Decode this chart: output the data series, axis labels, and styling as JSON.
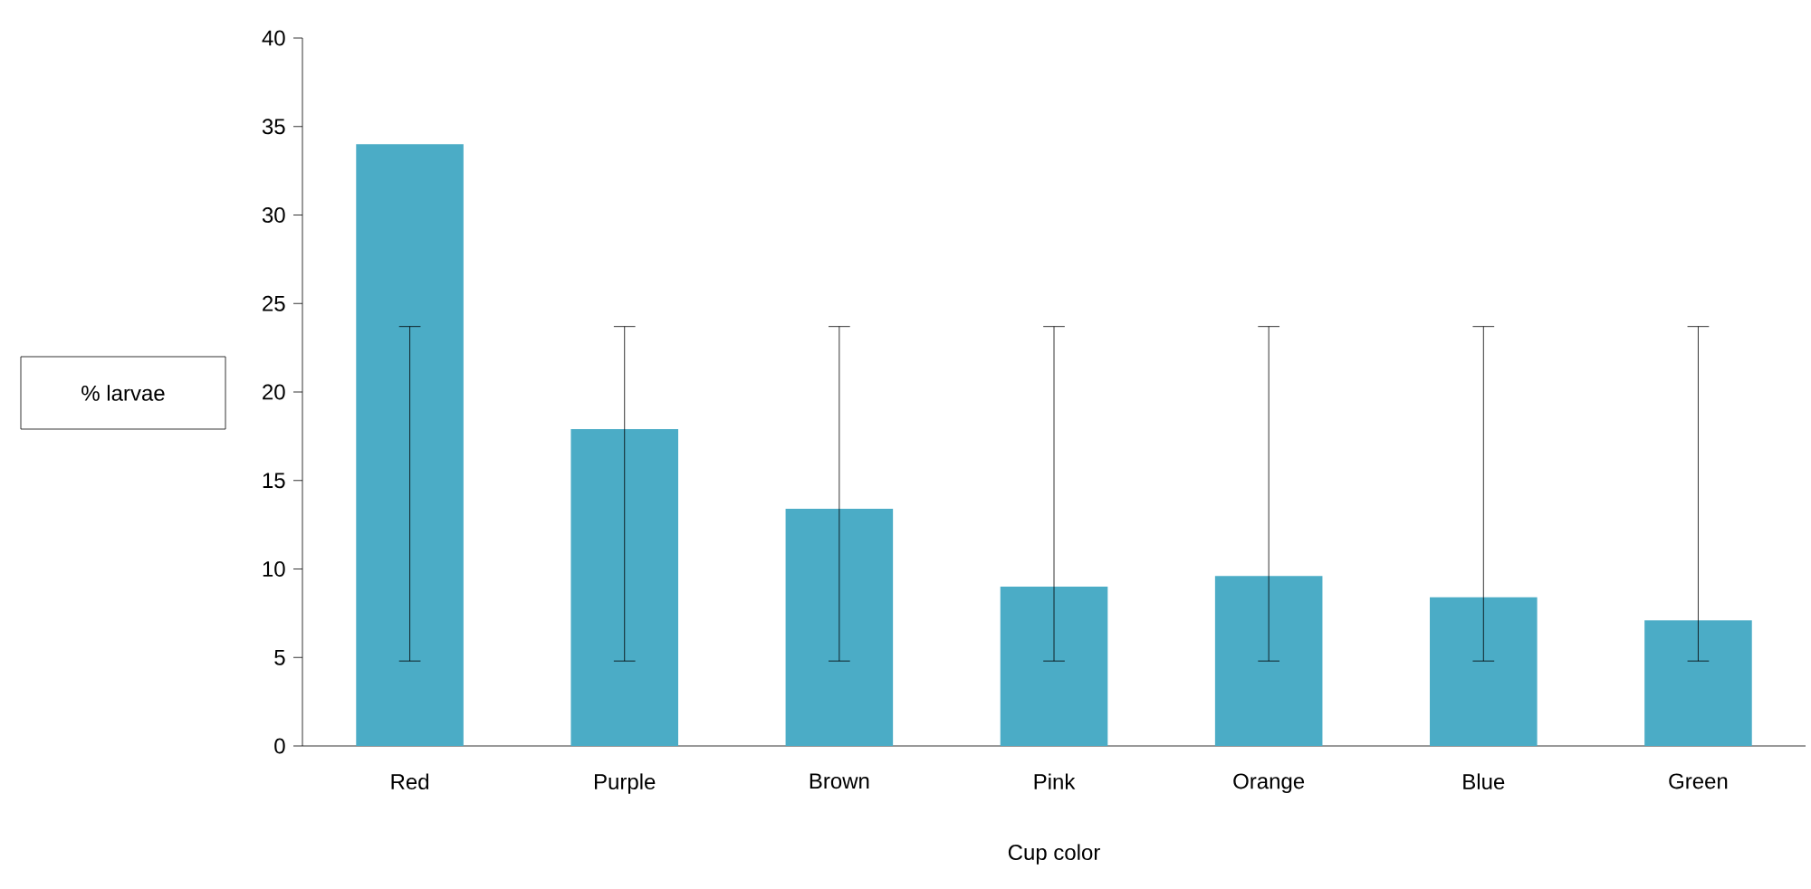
{
  "chart_data": {
    "type": "bar",
    "xlabel": "Cup color",
    "ylabel": "% larvae",
    "categories": [
      "Red",
      "Purple",
      "Brown",
      "Pink",
      "Orange",
      "Blue",
      "Green"
    ],
    "values": [
      34,
      17.9,
      13.4,
      9,
      9.6,
      8.4,
      7.1
    ],
    "color": "#4bacc6",
    "errors": [
      [
        4.8,
        23.7
      ],
      [
        4.8,
        23.7
      ],
      [
        4.8,
        23.7
      ],
      [
        4.8,
        23.7
      ],
      [
        4.8,
        23.7
      ],
      [
        4.8,
        23.7
      ],
      [
        4.8,
        23.7
      ]
    ],
    "ylim": [
      0,
      40
    ],
    "yticks": [
      0,
      5,
      10,
      15,
      20,
      25,
      30,
      35,
      40
    ]
  }
}
